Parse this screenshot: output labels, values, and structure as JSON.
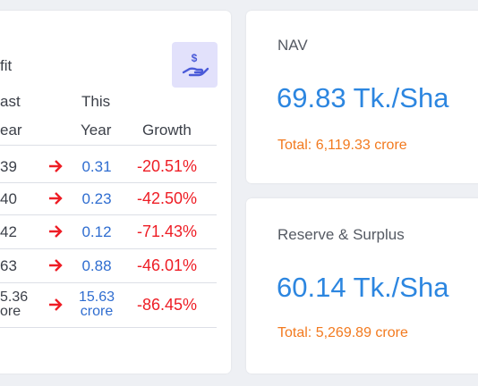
{
  "profit_card": {
    "title": "fit",
    "header": {
      "last_year": [
        "ast",
        "ear"
      ],
      "this_year": [
        "This",
        "Year"
      ],
      "growth": "Growth"
    },
    "rows": [
      {
        "last_year": [
          "39"
        ],
        "this_year": [
          "0.31"
        ],
        "growth": "-20.51%"
      },
      {
        "last_year": [
          "40"
        ],
        "this_year": [
          "0.23"
        ],
        "growth": "-42.50%"
      },
      {
        "last_year": [
          "42"
        ],
        "this_year": [
          "0.12"
        ],
        "growth": "-71.43%"
      },
      {
        "last_year": [
          "63"
        ],
        "this_year": [
          "0.88"
        ],
        "growth": "-46.01%"
      },
      {
        "last_year": [
          "5.36",
          "ore"
        ],
        "this_year": [
          "15.63",
          "crore"
        ],
        "growth": "-86.45%"
      }
    ]
  },
  "nav_card": {
    "title": "NAV",
    "value": "69.83 Tk./Sha",
    "total": "Total: 6,119.33 crore"
  },
  "reserve_card": {
    "title": "Reserve & Surplus",
    "value": "60.14 Tk./Sha",
    "total": "Total: 5,269.89 crore"
  }
}
